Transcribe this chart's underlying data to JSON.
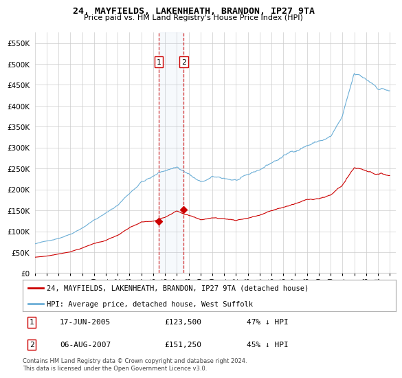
{
  "title": "24, MAYFIELDS, LAKENHEATH, BRANDON, IP27 9TA",
  "subtitle": "Price paid vs. HM Land Registry's House Price Index (HPI)",
  "legend_line1": "24, MAYFIELDS, LAKENHEATH, BRANDON, IP27 9TA (detached house)",
  "legend_line2": "HPI: Average price, detached house, West Suffolk",
  "transaction1_label": "1",
  "transaction1_date": "17-JUN-2005",
  "transaction1_price": "£123,500",
  "transaction1_hpi": "47% ↓ HPI",
  "transaction2_label": "2",
  "transaction2_date": "06-AUG-2007",
  "transaction2_price": "£151,250",
  "transaction2_hpi": "45% ↓ HPI",
  "footer": "Contains HM Land Registry data © Crown copyright and database right 2024.\nThis data is licensed under the Open Government Licence v3.0.",
  "hpi_color": "#6baed6",
  "price_color": "#cc0000",
  "transaction_color": "#cc0000",
  "background_color": "#ffffff",
  "grid_color": "#cccccc",
  "ylim": [
    0,
    575000
  ],
  "yticks": [
    0,
    50000,
    100000,
    150000,
    200000,
    250000,
    300000,
    350000,
    400000,
    450000,
    500000,
    550000
  ],
  "ytick_labels": [
    "£0",
    "£50K",
    "£100K",
    "£150K",
    "£200K",
    "£250K",
    "£300K",
    "£350K",
    "£400K",
    "£450K",
    "£500K",
    "£550K"
  ],
  "xlim_start": 1995.0,
  "xlim_end": 2025.5,
  "xticks": [
    1995,
    1996,
    1997,
    1998,
    1999,
    2000,
    2001,
    2002,
    2003,
    2004,
    2005,
    2006,
    2007,
    2008,
    2009,
    2010,
    2011,
    2012,
    2013,
    2014,
    2015,
    2016,
    2017,
    2018,
    2019,
    2020,
    2021,
    2022,
    2023,
    2024,
    2025
  ],
  "transaction1_x": 2005.46,
  "transaction2_x": 2007.59,
  "transaction1_y": 123500,
  "transaction2_y": 151250
}
